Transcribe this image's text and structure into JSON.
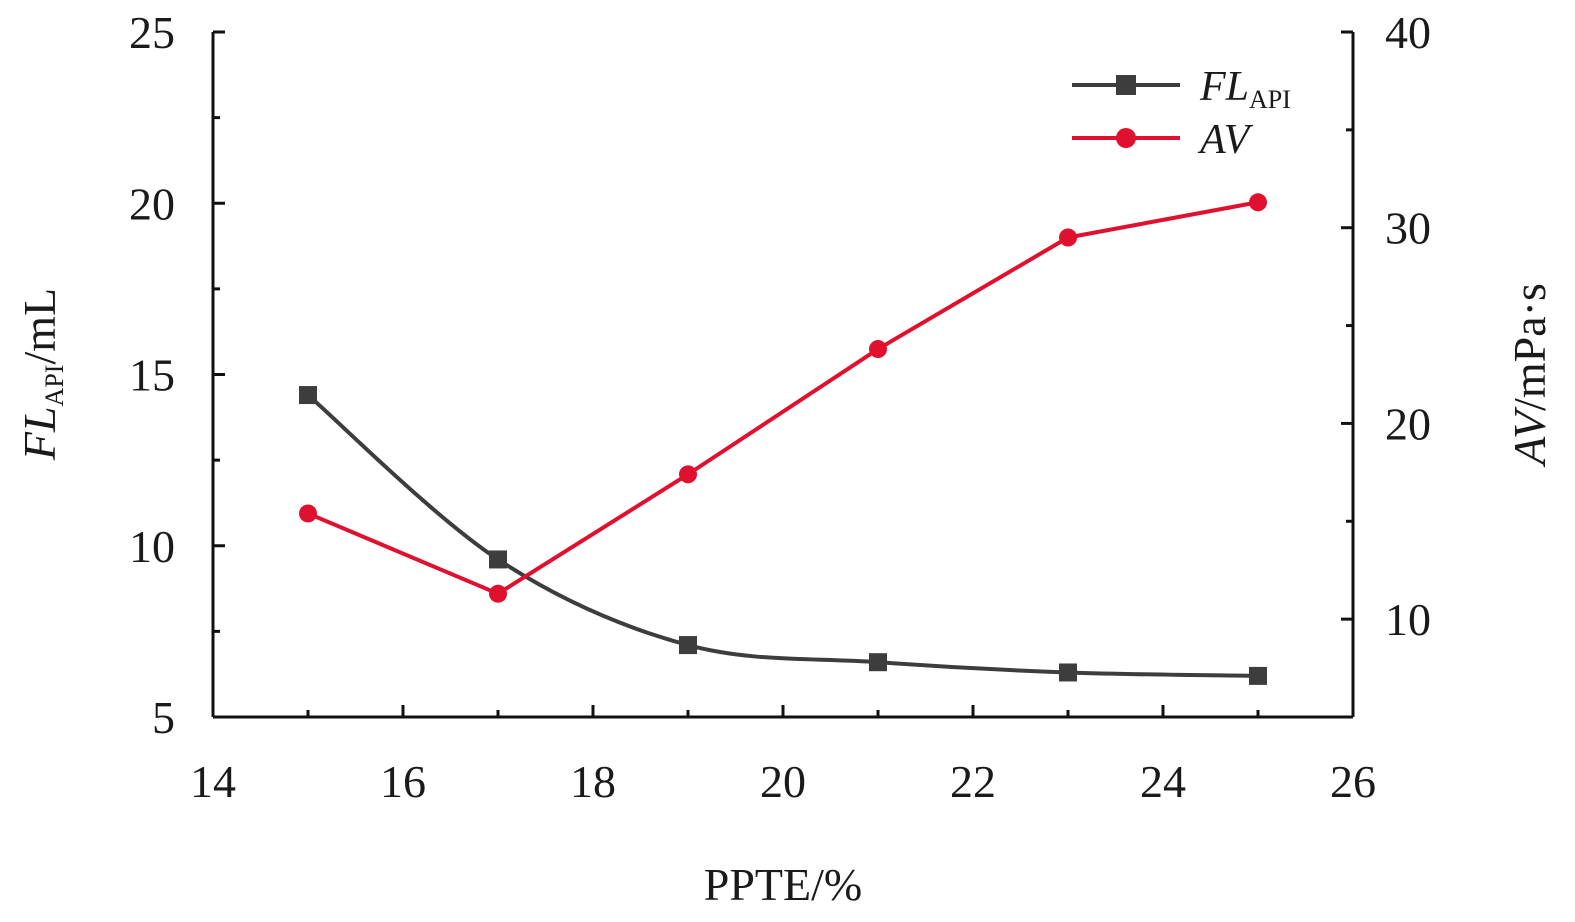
{
  "chart_data": {
    "type": "line",
    "x": [
      15,
      17,
      19,
      21,
      23,
      25
    ],
    "xlabel": "PPTE/%",
    "xlim": [
      14,
      26
    ],
    "xticks": [
      14,
      16,
      18,
      20,
      22,
      24,
      26
    ],
    "ylabel_left": {
      "main": "FL",
      "sub": "API",
      "unit": "/mL"
    },
    "ylabel_right": {
      "main": "AV",
      "unit": "/mPa·s"
    },
    "ylim_left": [
      5,
      25
    ],
    "yticks_left": [
      5,
      10,
      15,
      20,
      25
    ],
    "ylim_right": [
      5,
      40
    ],
    "yticks_right": [
      10,
      20,
      30,
      40
    ],
    "legend_position": "top-right",
    "grid": false,
    "series": [
      {
        "name": "FL",
        "name_sub": "API",
        "axis": "left",
        "marker": "square",
        "color": "#3d3d3d",
        "smooth": true,
        "values": [
          14.4,
          9.6,
          7.1,
          6.6,
          6.3,
          6.2
        ]
      },
      {
        "name": "AV",
        "name_sub": "",
        "axis": "right",
        "marker": "circle",
        "color": "#e0102f",
        "smooth": false,
        "values": [
          15.4,
          11.3,
          17.4,
          23.8,
          29.5,
          31.3
        ]
      }
    ]
  }
}
